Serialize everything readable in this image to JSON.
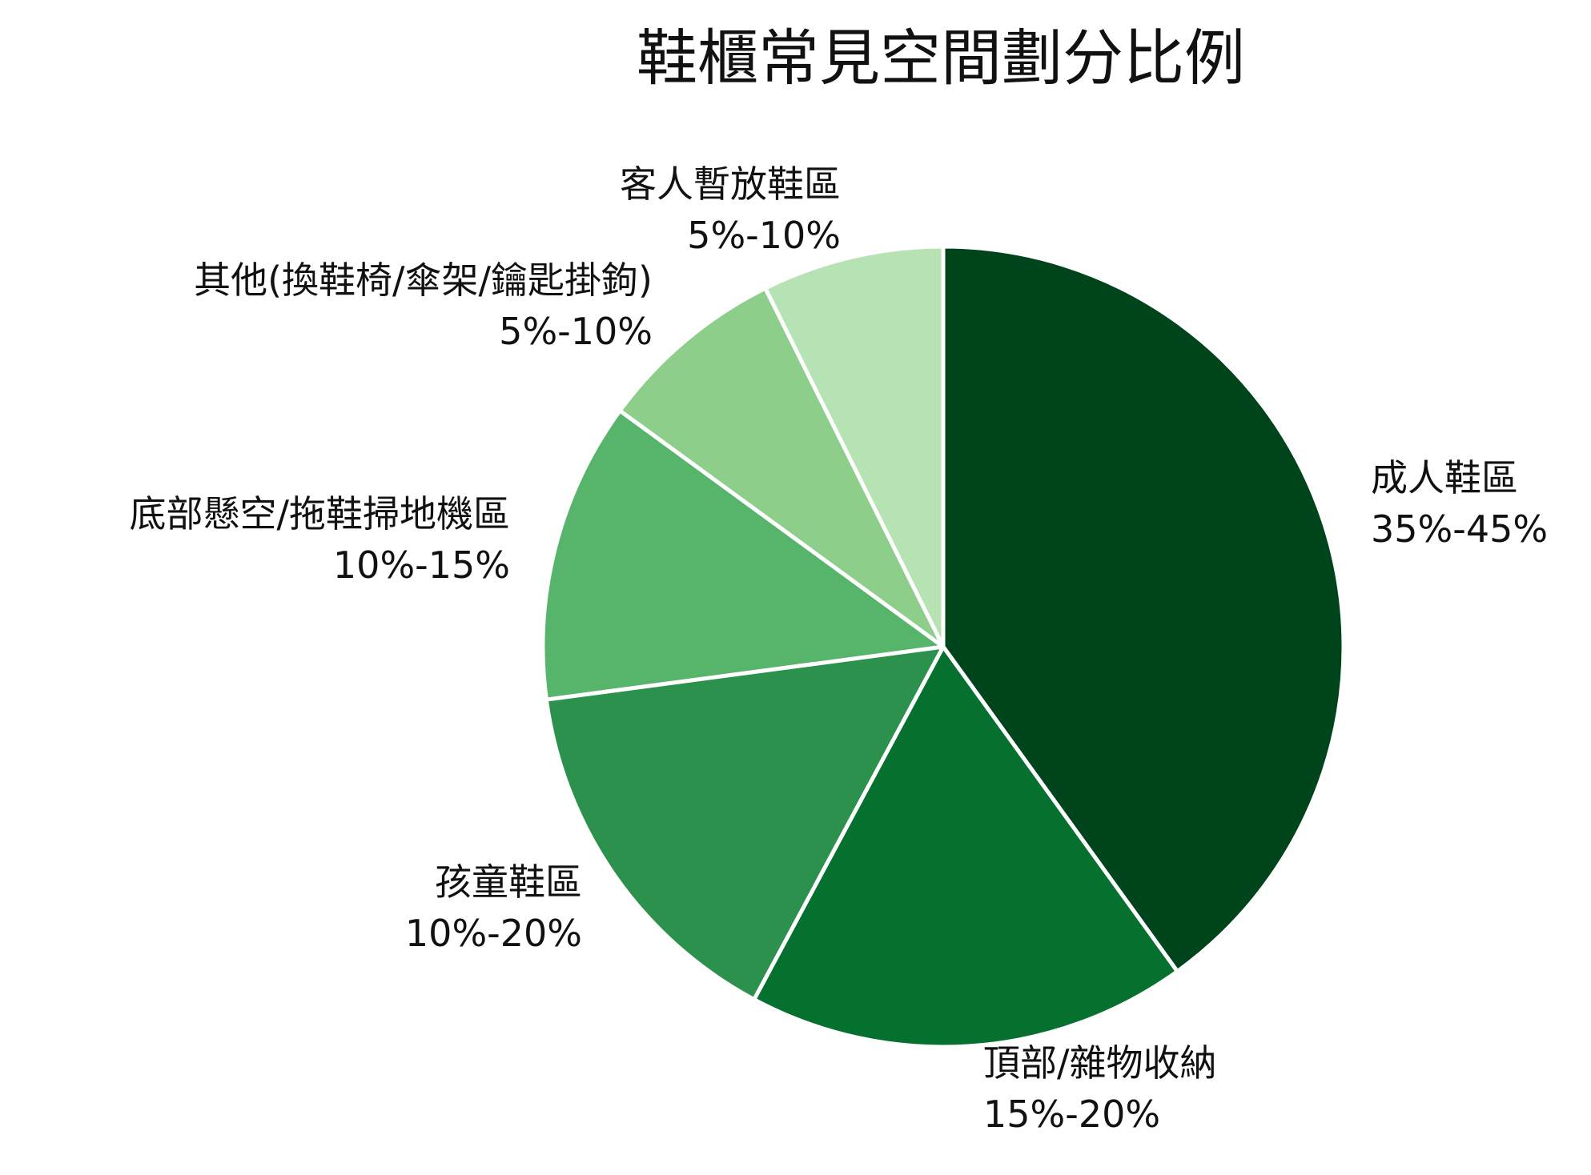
{
  "chart_data": {
    "type": "pie",
    "title": "鞋櫃常見空間劃分比例",
    "start_angle": "12 o'clock, clockwise",
    "slices": [
      {
        "label": "成人鞋區",
        "range": "35%-45%",
        "value": 39.9,
        "color": "#00441b"
      },
      {
        "label": "頂部/雜物收納",
        "range": "15%-20%",
        "value": 17.7,
        "color": "#06702f"
      },
      {
        "label": "孩童鞋區",
        "range": "10%-20%",
        "value": 15.0,
        "color": "#2c914c"
      },
      {
        "label": "底部懸空/拖鞋掃地機區",
        "range": "10%-15%",
        "value": 12.1,
        "color": "#56b46b"
      },
      {
        "label": "其他(換鞋椅/傘架/鑰匙掛鉤)",
        "range": "5%-10%",
        "value": 7.6,
        "color": "#8dce8b"
      },
      {
        "label": "客人暫放鞋區",
        "range": "5%-10%",
        "value": 7.3,
        "color": "#b7e2b3"
      }
    ],
    "legend": "none (direct labels)",
    "separator_color": "#ffffff"
  },
  "labels": {
    "adult": {
      "name": "成人鞋區",
      "range": "35%-45%"
    },
    "top": {
      "name": "頂部/雜物收納",
      "range": "15%-20%"
    },
    "kids": {
      "name": "孩童鞋區",
      "range": "10%-20%"
    },
    "bottom": {
      "name": "底部懸空/拖鞋掃地機區",
      "range": "10%-15%"
    },
    "other": {
      "name": "其他(換鞋椅/傘架/鑰匙掛鉤)",
      "range": "5%-10%"
    },
    "guest": {
      "name": "客人暫放鞋區",
      "range": "5%-10%"
    }
  }
}
